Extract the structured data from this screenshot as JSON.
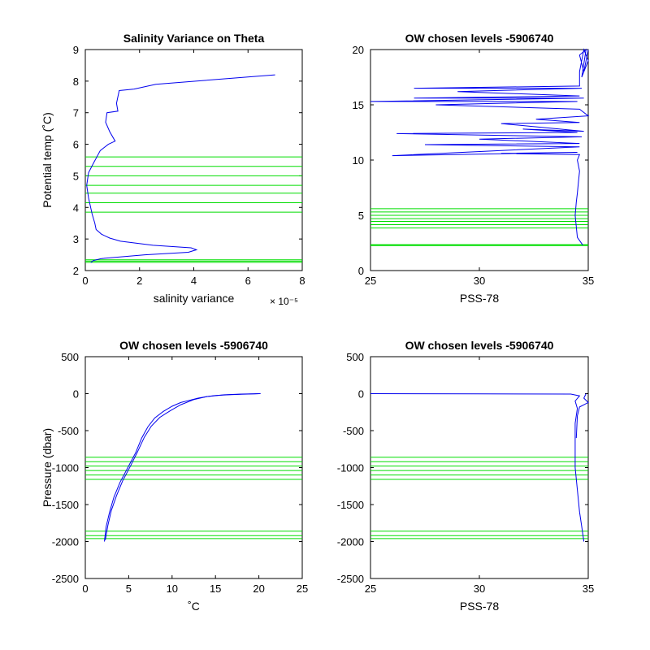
{
  "chart_data": [
    {
      "id": "p1",
      "type": "line",
      "title": "Salinity Variance on Theta",
      "xlabel": "salinity variance",
      "ylabel": "Potential temp (˚C)",
      "x_exponent_label": "× 10⁻⁵",
      "xlim": [
        0,
        8
      ],
      "ylim": [
        2,
        9
      ],
      "xticks": [
        "0",
        "2",
        "4",
        "6",
        "8"
      ],
      "yticks": [
        "2",
        "3",
        "4",
        "5",
        "6",
        "7",
        "8",
        "9"
      ],
      "series": [
        {
          "color": "#0000ee",
          "points": [
            [
              0.2,
              2.25
            ],
            [
              0.3,
              2.32
            ],
            [
              0.6,
              2.38
            ],
            [
              2.2,
              2.5
            ],
            [
              3.8,
              2.58
            ],
            [
              4.1,
              2.66
            ],
            [
              3.9,
              2.72
            ],
            [
              2.5,
              2.8
            ],
            [
              1.3,
              2.93
            ],
            [
              0.9,
              3.03
            ],
            [
              0.6,
              3.15
            ],
            [
              0.4,
              3.3
            ],
            [
              0.35,
              3.5
            ],
            [
              0.25,
              3.8
            ],
            [
              0.12,
              4.3
            ],
            [
              0.05,
              4.7
            ],
            [
              0.12,
              5.1
            ],
            [
              0.3,
              5.4
            ],
            [
              0.55,
              5.8
            ],
            [
              0.85,
              6.0
            ],
            [
              1.1,
              6.1
            ],
            [
              0.9,
              6.4
            ],
            [
              0.75,
              6.7
            ],
            [
              0.8,
              7.0
            ],
            [
              1.2,
              7.05
            ],
            [
              1.15,
              7.3
            ],
            [
              1.25,
              7.7
            ],
            [
              1.8,
              7.75
            ],
            [
              2.6,
              7.9
            ],
            [
              7.0,
              8.2
            ]
          ]
        }
      ],
      "hlines": {
        "color": "#00dd00",
        "values": [
          3.85,
          4.15,
          4.45,
          4.7,
          5.0,
          5.3,
          5.6,
          2.26,
          2.3,
          2.34
        ]
      }
    },
    {
      "id": "p2",
      "type": "line",
      "title": "OW chosen levels -5906740",
      "xlabel": "PSS-78",
      "ylabel": "",
      "xlim": [
        25,
        35
      ],
      "ylim": [
        0,
        20
      ],
      "xticks": [
        "25",
        "30",
        "35"
      ],
      "yticks": [
        "0",
        "5",
        "10",
        "15",
        "20"
      ],
      "series": [
        {
          "color": "#0000ee",
          "points": [
            [
              34.75,
              2.3
            ],
            [
              34.5,
              3.0
            ],
            [
              34.4,
              5.0
            ],
            [
              34.45,
              6.2
            ],
            [
              34.5,
              7.0
            ],
            [
              34.55,
              8.0
            ],
            [
              34.6,
              9.0
            ],
            [
              34.5,
              10.0
            ],
            [
              34.6,
              10.5
            ],
            [
              31.0,
              10.6
            ],
            [
              34.5,
              10.7
            ],
            [
              26.0,
              10.4
            ],
            [
              34.6,
              11.2
            ],
            [
              27.5,
              11.4
            ],
            [
              34.6,
              11.5
            ],
            [
              30.0,
              11.9
            ],
            [
              34.7,
              12.1
            ],
            [
              26.2,
              12.4
            ],
            [
              34.5,
              12.5
            ],
            [
              32.0,
              12.8
            ],
            [
              34.8,
              12.6
            ],
            [
              31.0,
              13.3
            ],
            [
              34.6,
              13.4
            ],
            [
              32.6,
              13.7
            ],
            [
              35.0,
              14.0
            ],
            [
              34.6,
              14.6
            ],
            [
              28.0,
              15.0
            ],
            [
              34.5,
              15.3
            ],
            [
              25.0,
              15.3
            ],
            [
              34.8,
              15.6
            ],
            [
              27.0,
              15.6
            ],
            [
              34.6,
              15.8
            ],
            [
              29.0,
              16.2
            ],
            [
              34.7,
              16.5
            ],
            [
              27.0,
              16.5
            ],
            [
              34.6,
              16.7
            ],
            [
              34.6,
              18.0
            ],
            [
              34.8,
              20.0
            ],
            [
              35.0,
              19.0
            ],
            [
              34.7,
              17.5
            ],
            [
              34.9,
              20.0
            ],
            [
              34.6,
              19.5
            ],
            [
              34.8,
              18.0
            ],
            [
              35.0,
              20.0
            ]
          ]
        }
      ],
      "hlines": {
        "color": "#00dd00",
        "values": [
          3.85,
          4.15,
          4.45,
          4.7,
          5.0,
          5.3,
          5.6,
          2.26,
          2.3,
          2.34
        ]
      }
    },
    {
      "id": "p3",
      "type": "line",
      "title": "OW chosen levels -5906740",
      "xlabel": "˚C",
      "ylabel": "Pressure (dbar)",
      "xlim": [
        0,
        25
      ],
      "ylim": [
        -2500,
        500
      ],
      "xticks": [
        "0",
        "5",
        "10",
        "15",
        "20",
        "25"
      ],
      "yticks": [
        "-2500",
        "-2000",
        "-1500",
        "-1000",
        "-500",
        "0",
        "500"
      ],
      "series": [
        {
          "color": "#0000ee",
          "points": [
            [
              2.2,
              -2000
            ],
            [
              2.4,
              -1800
            ],
            [
              2.8,
              -1600
            ],
            [
              3.3,
              -1400
            ],
            [
              4.0,
              -1200
            ],
            [
              4.9,
              -1000
            ],
            [
              5.8,
              -800
            ],
            [
              6.5,
              -600
            ],
            [
              7.2,
              -450
            ],
            [
              8.0,
              -330
            ],
            [
              9.0,
              -240
            ],
            [
              10.0,
              -170
            ],
            [
              11.0,
              -120
            ],
            [
              12.0,
              -90
            ],
            [
              13.0,
              -60
            ],
            [
              14.0,
              -40
            ],
            [
              15.0,
              -25
            ],
            [
              16.5,
              -15
            ],
            [
              18.0,
              -8
            ],
            [
              19.5,
              -3
            ],
            [
              20.0,
              0
            ]
          ]
        },
        {
          "color": "#0000ee",
          "points": [
            [
              2.3,
              -1980
            ],
            [
              2.6,
              -1780
            ],
            [
              3.0,
              -1580
            ],
            [
              3.6,
              -1380
            ],
            [
              4.3,
              -1180
            ],
            [
              5.2,
              -980
            ],
            [
              6.0,
              -790
            ],
            [
              6.8,
              -590
            ],
            [
              7.6,
              -440
            ],
            [
              8.6,
              -320
            ],
            [
              9.8,
              -230
            ],
            [
              11.0,
              -150
            ],
            [
              12.5,
              -80
            ],
            [
              14.0,
              -40
            ],
            [
              16.0,
              -15
            ],
            [
              18.0,
              -5
            ],
            [
              20.2,
              0
            ]
          ]
        }
      ],
      "hlines": {
        "color": "#00dd00",
        "values": [
          -860,
          -920,
          -980,
          -1040,
          -1100,
          -1160,
          -1860,
          -1920,
          -1960
        ]
      }
    },
    {
      "id": "p4",
      "type": "line",
      "title": "OW chosen levels -5906740",
      "xlabel": "PSS-78",
      "ylabel": "",
      "xlim": [
        25,
        35
      ],
      "ylim": [
        -2500,
        500
      ],
      "xticks": [
        "25",
        "30",
        "35"
      ],
      "yticks": [
        "-2500",
        "-2000",
        "-1500",
        "-1000",
        "-500",
        "0",
        "500"
      ],
      "series": [
        {
          "color": "#0000ee",
          "points": [
            [
              25.0,
              0
            ],
            [
              30.0,
              -3
            ],
            [
              34.2,
              -5
            ],
            [
              34.6,
              -30
            ],
            [
              34.4,
              -100
            ],
            [
              34.5,
              -200
            ],
            [
              34.4,
              -400
            ],
            [
              34.4,
              -700
            ],
            [
              34.4,
              -1000
            ],
            [
              34.5,
              -1300
            ],
            [
              34.6,
              -1600
            ],
            [
              34.7,
              -1800
            ],
            [
              34.8,
              -2000
            ]
          ]
        },
        {
          "color": "#0000ee",
          "points": [
            [
              34.9,
              0
            ],
            [
              34.8,
              -60
            ],
            [
              35.0,
              -120
            ],
            [
              34.6,
              -180
            ],
            [
              34.5,
              -300
            ],
            [
              34.45,
              -600
            ]
          ]
        }
      ],
      "hlines": {
        "color": "#00dd00",
        "values": [
          -860,
          -920,
          -980,
          -1040,
          -1100,
          -1160,
          -1860,
          -1920,
          -1960
        ]
      }
    }
  ]
}
